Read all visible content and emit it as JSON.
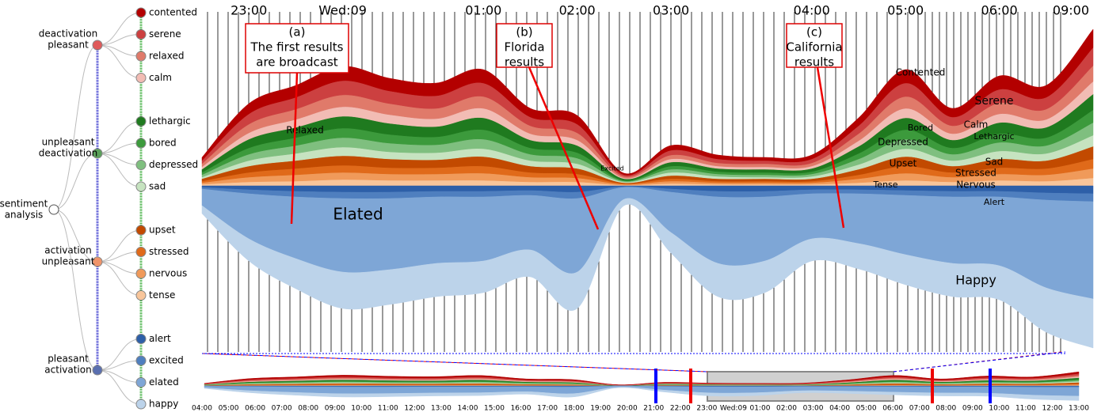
{
  "tree": {
    "root": [
      "sentiment",
      "analysis"
    ],
    "groups": [
      {
        "label": [
          "deactivation",
          "pleasant"
        ],
        "color": "#e05a5a",
        "leaves": [
          "contented",
          "serene",
          "relaxed",
          "calm"
        ]
      },
      {
        "label": [
          "unpleasant",
          "deactivation"
        ],
        "color": "#5aa05a",
        "leaves": [
          "lethargic",
          "bored",
          "depressed",
          "sad"
        ]
      },
      {
        "label": [
          "activation",
          "unpleasant"
        ],
        "color": "#f0946a",
        "leaves": [
          "upset",
          "stressed",
          "nervous",
          "tense"
        ]
      },
      {
        "label": [
          "pleasant",
          "activation"
        ],
        "color": "#5a6fb0",
        "leaves": [
          "alert",
          "excited",
          "elated",
          "happy"
        ]
      }
    ]
  },
  "annotations": [
    [
      "(a)",
      "The first results",
      "are broadcast"
    ],
    [
      "(b)",
      "Florida",
      "results"
    ],
    [
      "(c)",
      "California",
      "results"
    ]
  ],
  "overview_axis": [
    "04:00",
    "05:00",
    "06:00",
    "07:00",
    "08:00",
    "09:00",
    "10:00",
    "11:00",
    "12:00",
    "13:00",
    "14:00",
    "15:00",
    "16:00",
    "17:00",
    "18:00",
    "19:00",
    "20:00",
    "21:00",
    "22:00",
    "23:00",
    "Wed:09",
    "01:00",
    "02:00",
    "03:00",
    "04:00",
    "05:00",
    "06:00",
    "07:00",
    "08:00",
    "09:00",
    "10:00",
    "11:00",
    "12:00",
    "13:00"
  ],
  "chart_data": {
    "type": "streamgraph",
    "categories": [
      null,
      "23:00",
      null,
      "Wed:09",
      null,
      null,
      "01:00",
      null,
      "02:00",
      null,
      "03:00",
      null,
      null,
      "04:00",
      null,
      "05:00",
      null,
      "06:00",
      null,
      "09:00"
    ],
    "series": [
      {
        "name": "contented",
        "label": "Contented",
        "side": "up",
        "color": "#b30000",
        "values": [
          4,
          13,
          15,
          18,
          16,
          16,
          17,
          11,
          11,
          2,
          6,
          5,
          4,
          5,
          10,
          17,
          11,
          17,
          15,
          23
        ]
      },
      {
        "name": "serene",
        "label": "Serene",
        "side": "up",
        "color": "#cc4040",
        "values": [
          4,
          13,
          15,
          18,
          16,
          16,
          17,
          11,
          11,
          2,
          6,
          5,
          4,
          5,
          10,
          17,
          11,
          17,
          15,
          23
        ]
      },
      {
        "name": "relaxed",
        "label": "Relaxed",
        "side": "up",
        "color": "#e07a6a",
        "values": [
          4,
          11,
          13,
          15,
          14,
          13,
          15,
          10,
          9,
          2,
          5,
          4,
          4,
          4,
          9,
          15,
          10,
          14,
          13,
          20
        ]
      },
      {
        "name": "calm",
        "label": "Calm",
        "side": "up",
        "color": "#f2bcb4",
        "values": [
          3,
          8,
          10,
          12,
          11,
          10,
          12,
          8,
          7,
          1,
          4,
          3,
          3,
          3,
          7,
          12,
          8,
          11,
          10,
          16
        ]
      },
      {
        "name": "lethargic",
        "label": "Lethargic",
        "side": "up",
        "color": "#1f7a1f",
        "values": [
          4,
          11,
          13,
          15,
          14,
          13,
          15,
          10,
          9,
          2,
          5,
          4,
          4,
          4,
          9,
          15,
          10,
          14,
          13,
          20
        ]
      },
      {
        "name": "bored",
        "label": "Bored",
        "side": "up",
        "color": "#3c9a3c",
        "values": [
          3,
          8,
          10,
          12,
          11,
          10,
          12,
          8,
          7,
          1,
          4,
          3,
          3,
          3,
          7,
          12,
          8,
          11,
          10,
          16
        ]
      },
      {
        "name": "depressed",
        "label": "Depressed",
        "side": "up",
        "color": "#7fbf7f",
        "values": [
          3,
          8,
          10,
          12,
          11,
          10,
          12,
          8,
          7,
          1,
          4,
          3,
          3,
          3,
          7,
          12,
          8,
          11,
          10,
          16
        ]
      },
      {
        "name": "sad",
        "label": "Sad",
        "side": "up",
        "color": "#c6e3c0",
        "values": [
          2,
          7,
          9,
          11,
          9,
          9,
          10,
          7,
          6,
          1,
          4,
          3,
          2,
          3,
          6,
          10,
          7,
          10,
          9,
          14
        ]
      },
      {
        "name": "upset",
        "label": "Upset",
        "side": "up",
        "color": "#c24a00",
        "values": [
          3,
          8,
          10,
          12,
          11,
          10,
          12,
          8,
          7,
          1,
          4,
          3,
          3,
          3,
          7,
          12,
          8,
          11,
          10,
          16
        ]
      },
      {
        "name": "stressed",
        "label": "Stressed",
        "side": "up",
        "color": "#e06a1a",
        "values": [
          2,
          6,
          8,
          9,
          8,
          8,
          9,
          6,
          5,
          1,
          3,
          2,
          2,
          2,
          5,
          9,
          6,
          8,
          8,
          12
        ]
      },
      {
        "name": "nervous",
        "label": "Nervous",
        "side": "up",
        "color": "#f09a5a",
        "values": [
          2,
          6,
          8,
          9,
          8,
          8,
          9,
          6,
          5,
          1,
          3,
          2,
          2,
          2,
          5,
          9,
          6,
          8,
          8,
          12
        ]
      },
      {
        "name": "tense",
        "label": "Tense",
        "side": "up",
        "color": "#f8c59a",
        "values": [
          2,
          5,
          6,
          8,
          7,
          7,
          7,
          5,
          5,
          1,
          3,
          2,
          2,
          2,
          4,
          7,
          5,
          7,
          6,
          10
        ]
      },
      {
        "name": "alert",
        "label": "Alert",
        "side": "down",
        "color": "#2d5fa8",
        "values": [
          2,
          5,
          7,
          8,
          8,
          7,
          7,
          6,
          8,
          1,
          4,
          7,
          7,
          5,
          5,
          6,
          7,
          7,
          9,
          10
        ]
      },
      {
        "name": "excited",
        "label": "Excited",
        "side": "down",
        "color": "#4f7fbf",
        "values": [
          2,
          5,
          7,
          8,
          8,
          7,
          7,
          6,
          8,
          1,
          4,
          7,
          7,
          5,
          5,
          6,
          7,
          7,
          9,
          10
        ]
      },
      {
        "name": "elated",
        "label": "Elated",
        "side": "down",
        "color": "#7ea6d6",
        "values": [
          21,
          57,
          78,
          93,
          90,
          84,
          81,
          69,
          93,
          15,
          51,
          84,
          81,
          57,
          63,
          75,
          84,
          87,
          111,
          123
        ]
      },
      {
        "name": "happy",
        "label": "Happy",
        "side": "down",
        "color": "#bcd3ea",
        "values": [
          10,
          28,
          38,
          46,
          44,
          42,
          40,
          34,
          46,
          8,
          26,
          42,
          40,
          28,
          32,
          38,
          42,
          43,
          56,
          62
        ]
      }
    ]
  }
}
